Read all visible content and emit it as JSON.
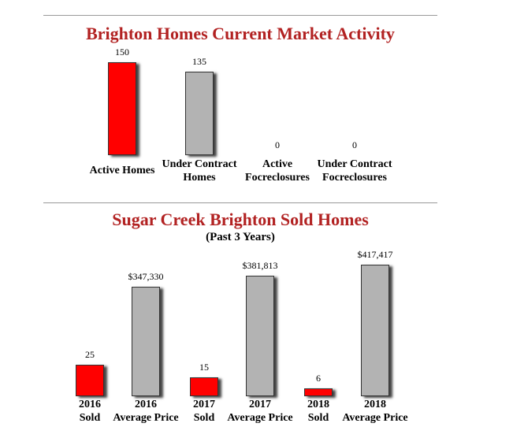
{
  "chart_data": [
    {
      "type": "bar",
      "title": "Brighton Homes Current Market Activity",
      "subtitle": "",
      "categories": [
        "Active Homes",
        "Under Contract\nHomes",
        "Active\nFocreclosures",
        "Under Contract\nFocreclosures"
      ],
      "values": [
        150,
        135,
        0,
        0
      ],
      "value_labels": [
        "150",
        "135",
        "0",
        "0"
      ],
      "colors": [
        "#ff0000",
        "#b3b3b3",
        "#b3b3b3",
        "#b3b3b3"
      ],
      "xlabel": "",
      "ylabel": "",
      "ylim": [
        0,
        150
      ],
      "grid": false
    },
    {
      "type": "bar",
      "title": "Sugar Creek Brighton Sold Homes",
      "subtitle": "(Past 3 Years)",
      "categories": [
        "2016\nSold",
        "2016\nAverage Price",
        "2017\nSold",
        "2017\nAverage Price",
        "2018\nSold",
        "2018\nAverage Price"
      ],
      "values": [
        25,
        347330,
        15,
        381813,
        6,
        417417
      ],
      "value_labels": [
        "25",
        "$347,330",
        "15",
        "$381,813",
        "6",
        "$417,417"
      ],
      "colors": [
        "#ff0000",
        "#b3b3b3",
        "#ff0000",
        "#b3b3b3",
        "#ff0000",
        "#b3b3b3"
      ],
      "mixed_scale": "sold counts and average prices share one chart with independent scales",
      "xlabel": "",
      "ylabel": "",
      "grid": false
    }
  ]
}
